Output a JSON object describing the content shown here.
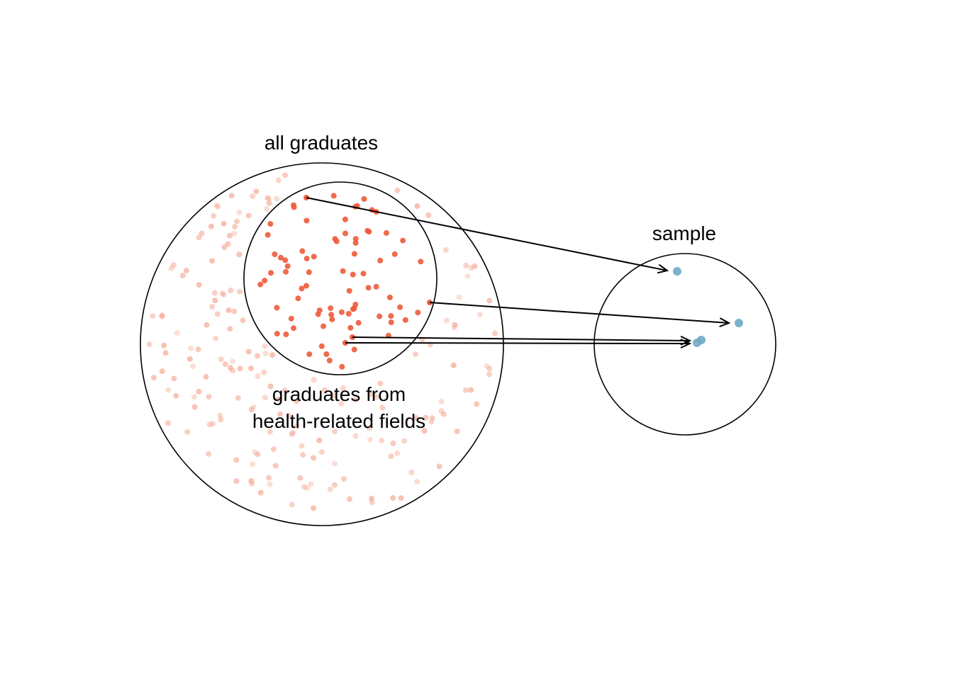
{
  "labels": {
    "population": "all graduates",
    "subgroup_line1": "graduates from",
    "subgroup_line2": "health-related fields",
    "sample": "sample"
  },
  "colors": {
    "population_points": "#f4a58f",
    "subgroup_points": "#ee5a3a",
    "sample_points": "#6fa8c8",
    "outline": "#000000"
  },
  "counts": {
    "sample_points": 4
  }
}
